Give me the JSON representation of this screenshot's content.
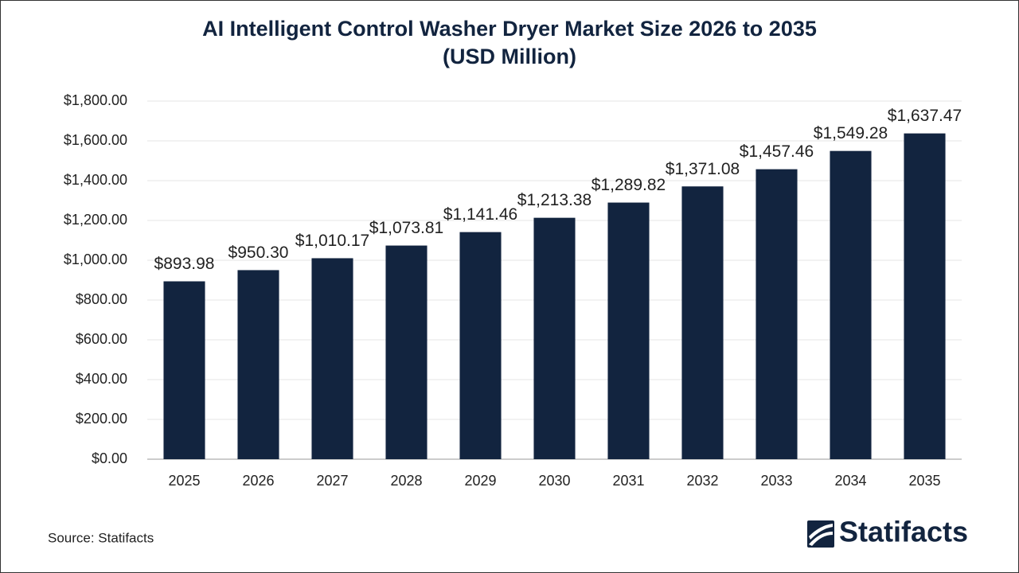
{
  "chart_data": {
    "type": "bar",
    "title": "AI Intelligent Control Washer Dryer Market Size 2026 to 2035",
    "subtitle": "(USD Million)",
    "categories": [
      "2025",
      "2026",
      "2027",
      "2028",
      "2029",
      "2030",
      "2031",
      "2032",
      "2033",
      "2034",
      "2035"
    ],
    "values": [
      893.98,
      950.3,
      1010.17,
      1073.81,
      1141.46,
      1213.38,
      1289.82,
      1371.08,
      1457.46,
      1549.28,
      1637.47
    ],
    "value_labels": [
      "$893.98",
      "$950.30",
      "$1,010.17",
      "$1,073.81",
      "$1,141.46",
      "$1,213.38",
      "$1,289.82",
      "$1,371.08",
      "$1,457.46",
      "$1,549.28",
      "$1,637.47"
    ],
    "color": "#12243f",
    "ylim": [
      0,
      1800
    ],
    "yticks": [
      {
        "value": 0,
        "label": "$0.00"
      },
      {
        "value": 200,
        "label": "$200.00"
      },
      {
        "value": 400,
        "label": "$400.00"
      },
      {
        "value": 600,
        "label": "$600.00"
      },
      {
        "value": 800,
        "label": "$800.00"
      },
      {
        "value": 1000,
        "label": "$1,000.00"
      },
      {
        "value": 1200,
        "label": "$1,200.00"
      },
      {
        "value": 1400,
        "label": "$1,400.00"
      },
      {
        "value": 1600,
        "label": "$1,600.00"
      },
      {
        "value": 1800,
        "label": "$1,800.00"
      }
    ],
    "grid": true
  },
  "source": "Source: Statifacts",
  "logo": "Statifacts"
}
